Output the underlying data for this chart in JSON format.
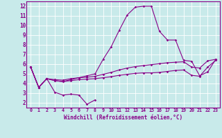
{
  "xlabel": "Windchill (Refroidissement éolien,°C)",
  "xlim": [
    -0.5,
    23.5
  ],
  "ylim": [
    1.5,
    12.5
  ],
  "yticks": [
    2,
    3,
    4,
    5,
    6,
    7,
    8,
    9,
    10,
    11,
    12
  ],
  "xticks": [
    0,
    1,
    2,
    3,
    4,
    5,
    6,
    7,
    8,
    9,
    10,
    11,
    12,
    13,
    14,
    15,
    16,
    17,
    18,
    19,
    20,
    21,
    22,
    23
  ],
  "bg_color": "#c8eaea",
  "line_color": "#880088",
  "grid_color": "#ffffff",
  "lines": [
    [
      5.7,
      3.6,
      4.5,
      3.1,
      2.8,
      2.9,
      2.8,
      1.85,
      2.3,
      null,
      null,
      null,
      null,
      null,
      null,
      null,
      null,
      null,
      null,
      null,
      null,
      null,
      null,
      null
    ],
    [
      5.7,
      3.6,
      4.5,
      4.3,
      4.2,
      4.3,
      4.4,
      4.45,
      4.5,
      4.6,
      4.7,
      4.85,
      4.95,
      5.05,
      5.1,
      5.1,
      5.15,
      5.25,
      5.35,
      5.4,
      4.85,
      4.75,
      5.7,
      6.4
    ],
    [
      5.7,
      3.6,
      4.5,
      4.4,
      4.35,
      4.5,
      4.6,
      4.65,
      4.75,
      4.95,
      5.15,
      5.4,
      5.6,
      5.75,
      5.85,
      5.95,
      6.05,
      6.15,
      6.2,
      6.25,
      5.7,
      5.6,
      6.35,
      6.5
    ],
    [
      5.7,
      3.6,
      4.5,
      4.3,
      4.2,
      4.4,
      4.6,
      4.8,
      5.0,
      6.5,
      7.8,
      9.5,
      11.1,
      11.9,
      12.0,
      12.0,
      9.4,
      8.5,
      8.5,
      6.4,
      6.3,
      4.8,
      5.2,
      6.5
    ]
  ]
}
